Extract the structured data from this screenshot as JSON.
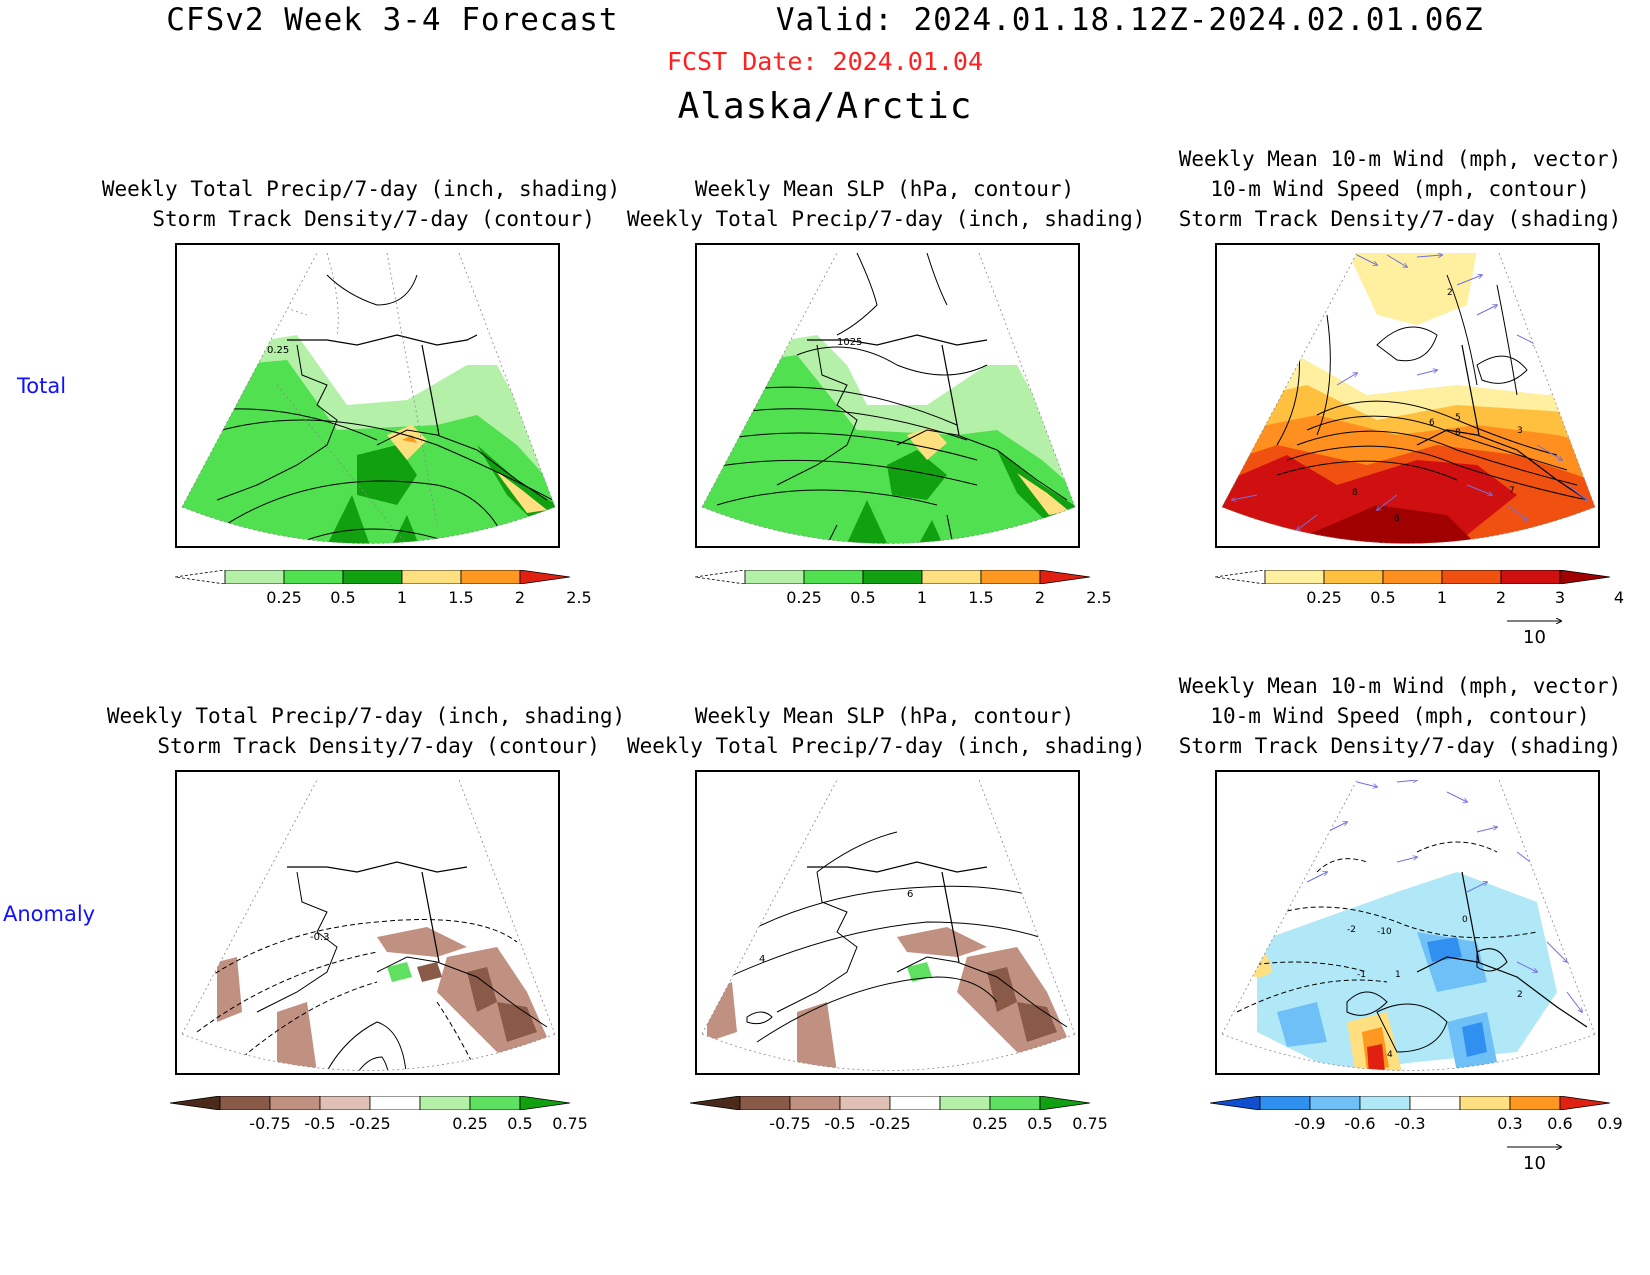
{
  "header": {
    "title": "CFSv2 Week 3-4 Forecast        Valid: 2024.01.18.12Z-2024.02.01.06Z",
    "fcst_date": "FCST Date: 2024.01.04",
    "region": "Alaska/Arctic"
  },
  "rows": {
    "total_label": "Total",
    "anomaly_label": "Anomaly"
  },
  "panels": {
    "precip_total_title": "Weekly Total Precip/7-day (inch, shading)\n  Storm Track Density/7-day (contour)",
    "slp_total_title": "Weekly Mean SLP (hPa, contour)\nWeekly Total Precip/7-day (inch, shading)",
    "wind_total_title": "Weekly Mean 10-m Wind (mph, vector)\n10-m Wind Speed (mph, contour)\nStorm Track Density/7-day (shading)",
    "precip_anom_title": "Weekly Total Precip/7-day (inch, shading)\n  Storm Track Density/7-day (contour)",
    "slp_anom_title": "Weekly Mean SLP (hPa, contour)\nWeekly Total Precip/7-day (inch, shading)",
    "wind_anom_title": "Weekly Mean 10-m Wind (mph, vector)\n10-m Wind Speed (mph, contour)\nStorm Track Density/7-day (shading)"
  },
  "contour_labels": {
    "precip_total": "0.25",
    "slp_total": "1025",
    "precip_anom": "-0.3",
    "slp_anom_a": "6",
    "slp_anom_b": "4",
    "wind_total": [
      "2",
      "6",
      "5",
      "8",
      "3",
      "8",
      "7",
      "8"
    ],
    "wind_anom": [
      "-2",
      "-1",
      "-10",
      "0",
      "1",
      "2",
      "4"
    ]
  },
  "colorbars": {
    "precip": {
      "ticks": [
        "0.25",
        "0.5",
        "1",
        "1.5",
        "2",
        "2.5"
      ],
      "colors": [
        "#b4f0a8",
        "#50e050",
        "#10a010",
        "#ffe080",
        "#ff9820",
        "#e02010"
      ]
    },
    "storm": {
      "ticks": [
        "0.25",
        "0.5",
        "1",
        "2",
        "3",
        "4"
      ],
      "colors": [
        "#fff0a0",
        "#ffc040",
        "#ff9020",
        "#f05010",
        "#d01010",
        "#a00000"
      ]
    },
    "precip_anom": {
      "ticks": [
        "-0.75",
        "-0.5",
        "-0.25",
        "0.25",
        "0.5",
        "0.75"
      ],
      "colors": [
        "#4a2a1a",
        "#8a5a48",
        "#c09080",
        "#e0c0b4",
        "#ffffff",
        "#b4f0a8",
        "#60e060",
        "#10a010"
      ]
    },
    "storm_anom": {
      "ticks": [
        "-0.9",
        "-0.6",
        "-0.3",
        "0.3",
        "0.6",
        "0.9"
      ],
      "colors": [
        "#1050d0",
        "#3090f0",
        "#70c0f8",
        "#b0e8f8",
        "#ffffff",
        "#ffe080",
        "#ff9820",
        "#e02010"
      ]
    }
  },
  "ref_vector": {
    "label": "10"
  },
  "colors": {
    "fcst_date": "#ff2020",
    "row_label": "#1010ff",
    "vector": "#7070e0"
  }
}
